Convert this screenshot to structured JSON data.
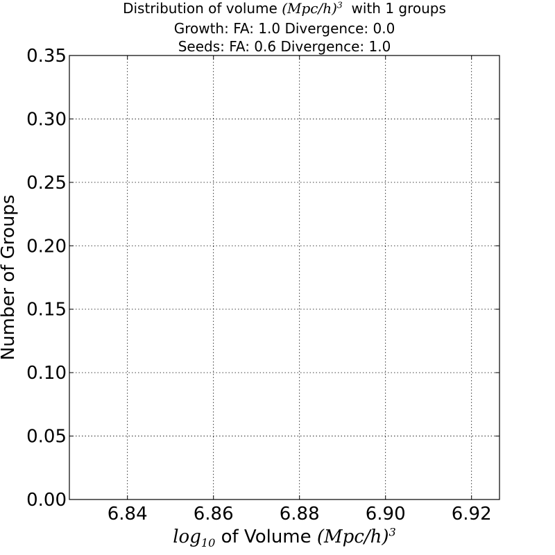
{
  "chart_data": {
    "type": "bar",
    "title_lines": {
      "line1_prefix": "Distribution of volume",
      "line1_math_base": "(Mpc/h)",
      "line1_math_exp": "3",
      "line1_suffix": "with 1 groups",
      "line2": "Growth: FA: 1.0 Divergence: 0.0",
      "line3": "Seeds: FA: 0.6 Divergence: 1.0"
    },
    "xlabel": {
      "log": "log",
      "log_sub": "10",
      "text": "of Volume",
      "unit_base": "(Mpc/h)",
      "unit_exp": "3"
    },
    "ylabel": "Number of Groups",
    "xlim": [
      6.8265,
      6.9265
    ],
    "ylim": [
      0.0,
      0.35
    ],
    "xticks": [
      6.84,
      6.86,
      6.88,
      6.9,
      6.92
    ],
    "xtick_labels": [
      "6.84",
      "6.86",
      "6.88",
      "6.90",
      "6.92"
    ],
    "yticks": [
      0.0,
      0.05,
      0.1,
      0.15,
      0.2,
      0.25,
      0.3,
      0.35
    ],
    "ytick_labels": [
      "0.00",
      "0.05",
      "0.10",
      "0.15",
      "0.20",
      "0.25",
      "0.30",
      "0.35"
    ],
    "grid": true,
    "series": [
      {
        "x": [],
        "values": []
      }
    ],
    "colors": {
      "grid": "#000000",
      "axes": "#000000",
      "background": "#ffffff"
    }
  }
}
